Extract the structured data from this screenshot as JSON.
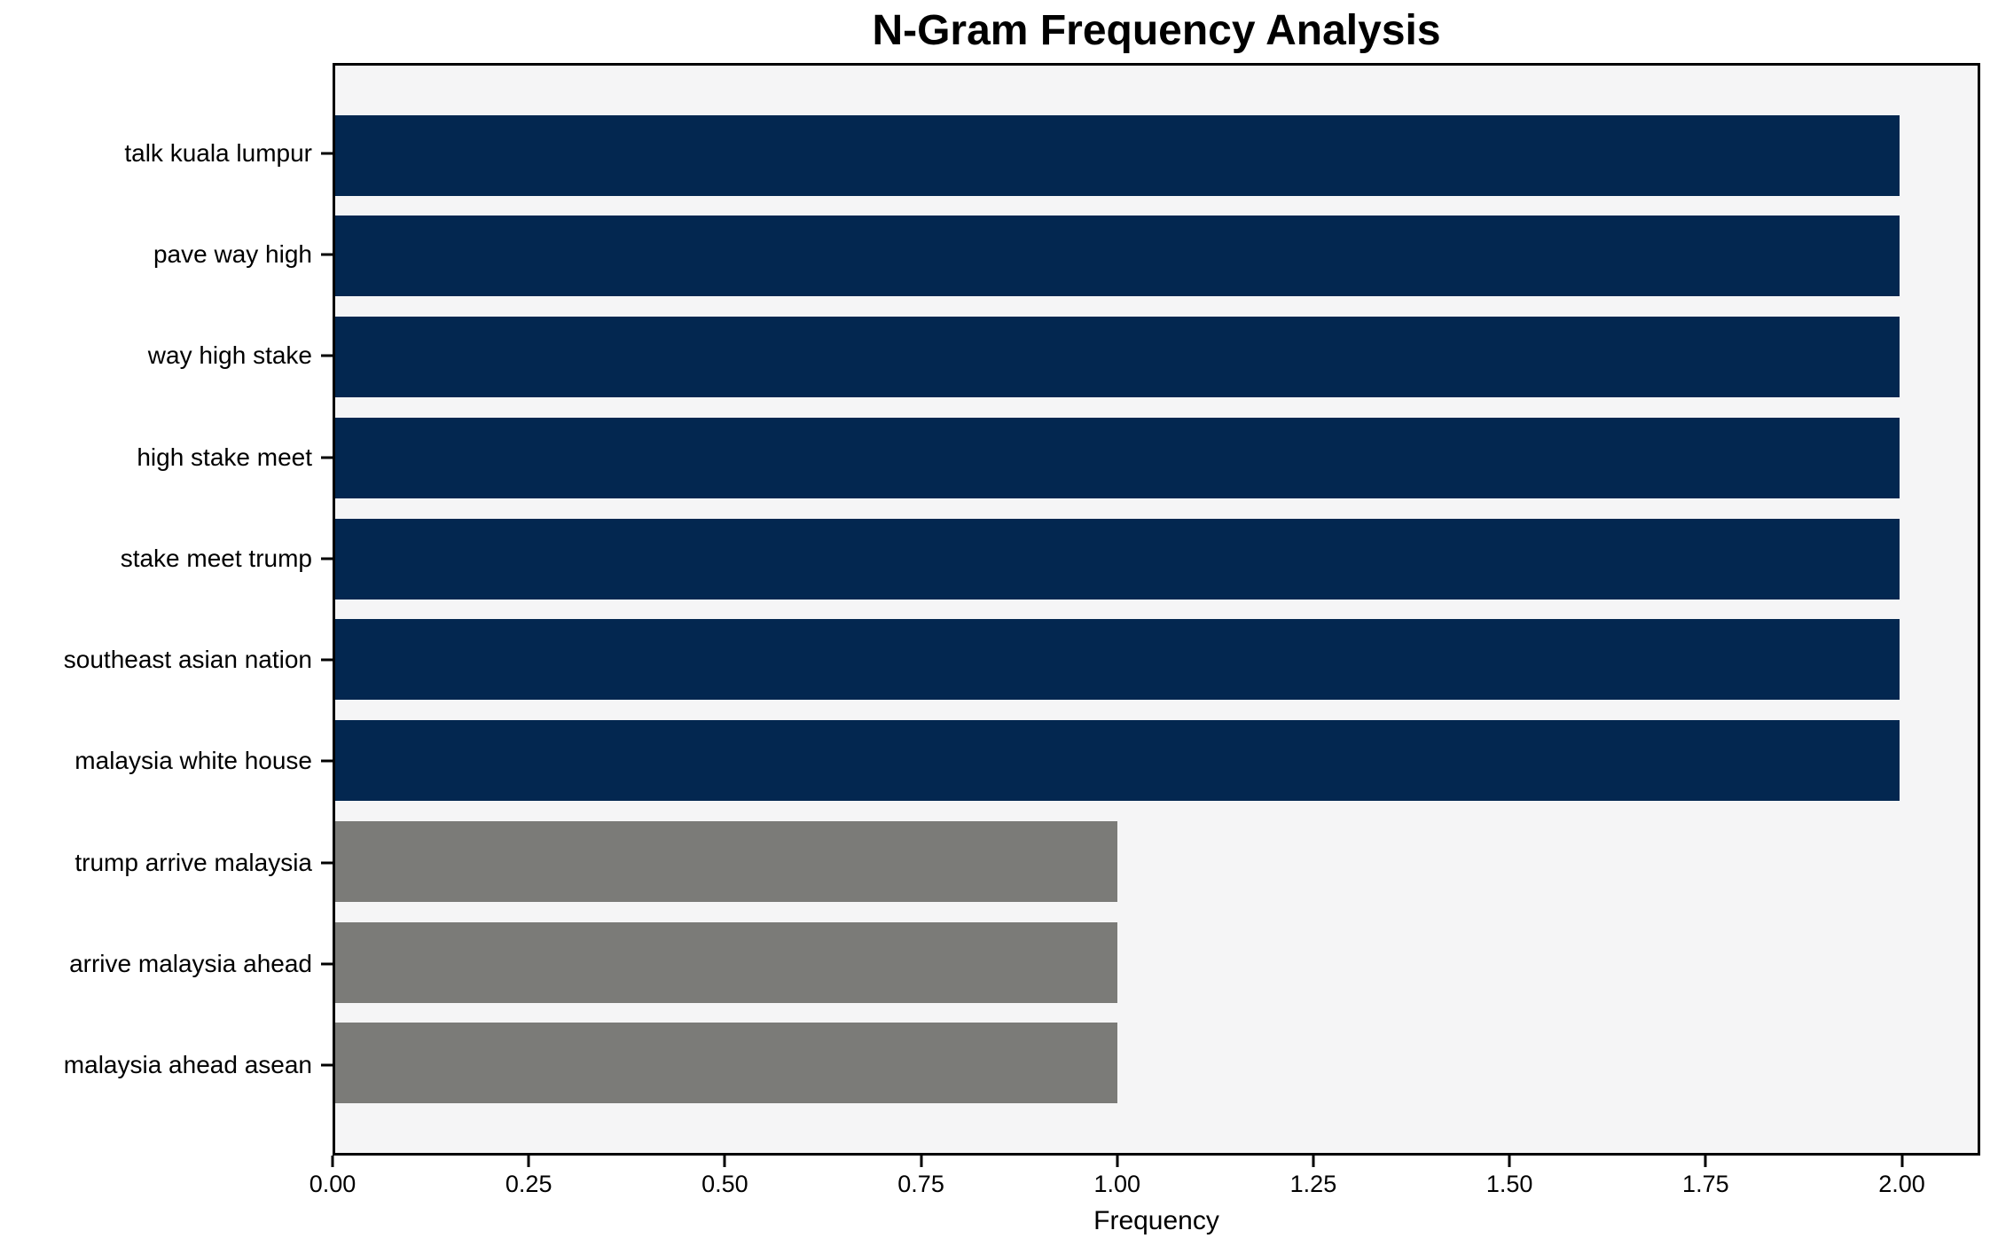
{
  "figure": {
    "title": "N-Gram Frequency Analysis",
    "xlabel": "Frequency"
  },
  "chart_data": {
    "type": "bar",
    "orientation": "horizontal",
    "title": "N-Gram Frequency Analysis",
    "xlabel": "Frequency",
    "ylabel": "",
    "categories": [
      "talk kuala lumpur",
      "pave way high",
      "way high stake",
      "high stake meet",
      "stake meet trump",
      "southeast asian nation",
      "malaysia white house",
      "trump arrive malaysia",
      "arrive malaysia ahead",
      "malaysia ahead asean"
    ],
    "values": [
      2,
      2,
      2,
      2,
      2,
      2,
      2,
      1,
      1,
      1
    ],
    "bar_colors": [
      "#032750",
      "#032750",
      "#032750",
      "#032750",
      "#032750",
      "#032750",
      "#032750",
      "#7B7B78",
      "#7B7B78",
      "#7B7B78"
    ],
    "xlim": [
      0,
      2.1
    ],
    "xticks": [
      0,
      0.25,
      0.5,
      0.75,
      1.0,
      1.25,
      1.5,
      1.75,
      2.0
    ],
    "xtick_labels": [
      "0.00",
      "0.25",
      "0.50",
      "0.75",
      "1.00",
      "1.25",
      "1.50",
      "1.75",
      "2.00"
    ],
    "grid": false,
    "legend": null,
    "bar_height_fraction": 0.8,
    "colors": {
      "high_freq_bar": "#032750",
      "low_freq_bar": "#7B7B78",
      "plot_background": "#F5F5F6",
      "figure_background": "#FFFFFF",
      "spine": "#000000",
      "text": "#000000"
    }
  }
}
